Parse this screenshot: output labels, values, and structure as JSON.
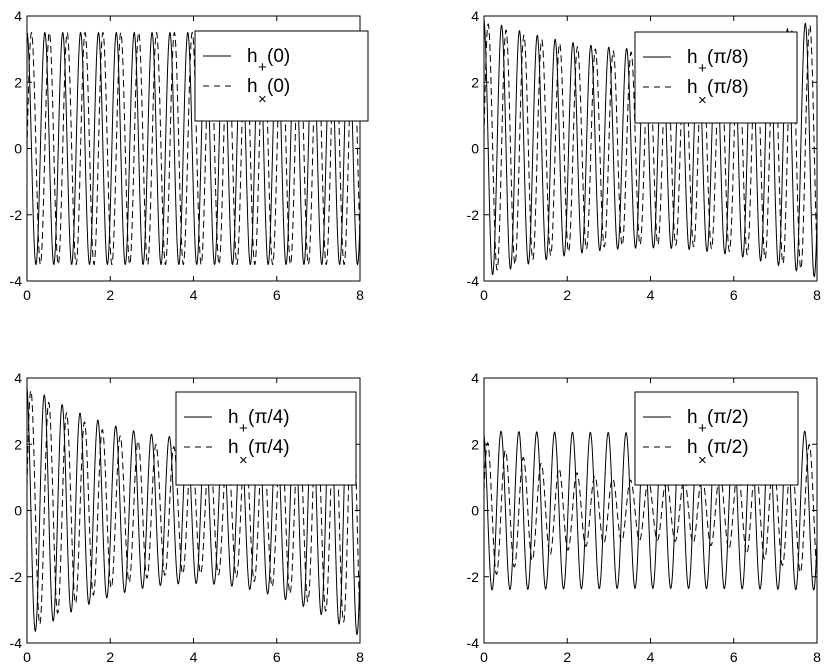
{
  "chart_data": [
    {
      "type": "line",
      "xlim": [
        0,
        8
      ],
      "ylim": [
        -4,
        4
      ],
      "xticks": [
        0,
        2,
        4,
        6,
        8
      ],
      "yticks": [
        -4,
        -2,
        0,
        2,
        4
      ],
      "grid": false,
      "legend_position": "top-right",
      "signal": {
        "cycles_per_unit": 2.33,
        "envelope_edge": 3.5,
        "envelope_mid": 3.5,
        "cross_envelope_edge": 3.5,
        "cross_envelope_mid": 3.5,
        "phase": 0.0
      },
      "series": [
        {
          "label_main": "h",
          "label_sub": "+",
          "label_arg": "(0)",
          "style": "solid"
        },
        {
          "label_main": "h",
          "label_sub": "×",
          "label_arg": "(0)",
          "style": "dashed"
        }
      ]
    },
    {
      "type": "line",
      "xlim": [
        0,
        8
      ],
      "ylim": [
        -4,
        4
      ],
      "xticks": [
        0,
        2,
        4,
        6,
        8
      ],
      "yticks": [
        -4,
        -2,
        0,
        2,
        4
      ],
      "grid": false,
      "legend_position": "top-right",
      "signal": {
        "cycles_per_unit": 2.33,
        "envelope_edge": 3.9,
        "envelope_mid": 3.0,
        "cross_envelope_edge": 3.8,
        "cross_envelope_mid": 2.9,
        "phase": 0.1
      },
      "series": [
        {
          "label_main": "h",
          "label_sub": "+",
          "label_arg": "(π/8)",
          "style": "solid"
        },
        {
          "label_main": "h",
          "label_sub": "×",
          "label_arg": "(π/8)",
          "style": "dashed"
        }
      ]
    },
    {
      "type": "line",
      "xlim": [
        0,
        8
      ],
      "ylim": [
        -4,
        4
      ],
      "xticks": [
        0,
        2,
        4,
        6,
        8
      ],
      "yticks": [
        -4,
        -2,
        0,
        2,
        4
      ],
      "grid": false,
      "legend_position": "top-right",
      "signal": {
        "cycles_per_unit": 2.33,
        "envelope_edge": 3.8,
        "envelope_mid": 2.2,
        "cross_envelope_edge": 3.7,
        "cross_envelope_mid": 1.9,
        "phase": 0.2
      },
      "series": [
        {
          "label_main": "h",
          "label_sub": "+",
          "label_arg": "(π/4)",
          "style": "solid"
        },
        {
          "label_main": "h",
          "label_sub": "×",
          "label_arg": "(π/4)",
          "style": "dashed"
        }
      ]
    },
    {
      "type": "line",
      "xlim": [
        0,
        8
      ],
      "ylim": [
        -4,
        4
      ],
      "xticks": [
        0,
        2,
        4,
        6,
        8
      ],
      "yticks": [
        -4,
        -2,
        0,
        2,
        4
      ],
      "grid": false,
      "legend_position": "top-right",
      "signal": {
        "cycles_per_unit": 2.33,
        "envelope_edge": 2.4,
        "envelope_mid": 2.35,
        "cross_envelope_edge": 2.1,
        "cross_envelope_mid": 0.9,
        "phase": 0.3
      },
      "series": [
        {
          "label_main": "h",
          "label_sub": "+",
          "label_arg": "(π/2)",
          "style": "solid"
        },
        {
          "label_main": "h",
          "label_sub": "×",
          "label_arg": "(π/2)",
          "style": "dashed"
        }
      ]
    }
  ]
}
